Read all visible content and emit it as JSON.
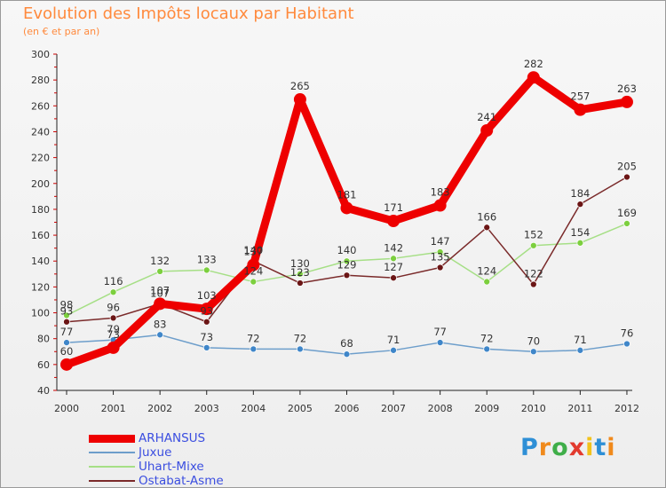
{
  "title": "Evolution des Impôts locaux par Habitant",
  "subtitle": "(en € et par an)",
  "logo": {
    "text": "Proxiti",
    "letters": [
      "P",
      "r",
      "o",
      "x",
      "i",
      "t",
      "i"
    ],
    "colors": [
      "#2e8fd6",
      "#f08a1c",
      "#3fae49",
      "#e23a2e",
      "#f2c21b",
      "#2e8fd6",
      "#f08a1c"
    ]
  },
  "chart_data": {
    "type": "line",
    "title": "Evolution des Impôts locaux par Habitant",
    "subtitle": "(en € et par an)",
    "xlabel": "",
    "ylabel": "",
    "categories": [
      "2000",
      "2001",
      "2002",
      "2003",
      "2004",
      "2005",
      "2006",
      "2007",
      "2008",
      "2009",
      "2010",
      "2011",
      "2012"
    ],
    "ylim": [
      40,
      300
    ],
    "yticks": [
      40,
      60,
      80,
      100,
      120,
      140,
      160,
      180,
      200,
      220,
      240,
      260,
      280,
      300
    ],
    "grid": false,
    "legend_position": "bottom-left",
    "series": [
      {
        "name": "ARHANSUS",
        "color": "#ee0000",
        "bold": true,
        "marker": "#ee0000",
        "values": [
          60,
          73,
          107,
          103,
          137,
          265,
          181,
          171,
          183,
          241,
          282,
          257,
          263
        ],
        "labels": [
          "60",
          "73",
          "107",
          "103",
          "137",
          "265",
          "181",
          "171",
          "183",
          "241",
          "282",
          "257",
          "263"
        ]
      },
      {
        "name": "Juxue",
        "color": "#6d9ecb",
        "bold": false,
        "marker": "#3f86c9",
        "values": [
          77,
          79,
          83,
          73,
          72,
          72,
          68,
          71,
          77,
          72,
          70,
          71,
          76
        ],
        "labels": [
          "77",
          "79",
          "83",
          "73",
          "72",
          "72",
          "68",
          "71",
          "77",
          "72",
          "70",
          "71",
          "76"
        ]
      },
      {
        "name": "Uhart-Mixe",
        "color": "#a6df86",
        "bold": false,
        "marker": "#7ccf3e",
        "values": [
          98,
          116,
          132,
          133,
          124,
          130,
          140,
          142,
          147,
          124,
          152,
          154,
          169
        ],
        "labels": [
          "98",
          "116",
          "132",
          "133",
          "124",
          "130",
          "140",
          "142",
          "147",
          "124",
          "152",
          "154",
          "169"
        ]
      },
      {
        "name": "Ostabat-Asme",
        "color": "#7a2a2a",
        "bold": false,
        "marker": "#6b1515",
        "values": [
          93,
          96,
          107,
          93,
          140,
          123,
          129,
          127,
          135,
          166,
          122,
          184,
          205
        ],
        "labels": [
          "93",
          "96",
          "107",
          "93",
          "140",
          "123",
          "129",
          "127",
          "135",
          "166",
          "122",
          "184",
          "205"
        ]
      }
    ]
  }
}
